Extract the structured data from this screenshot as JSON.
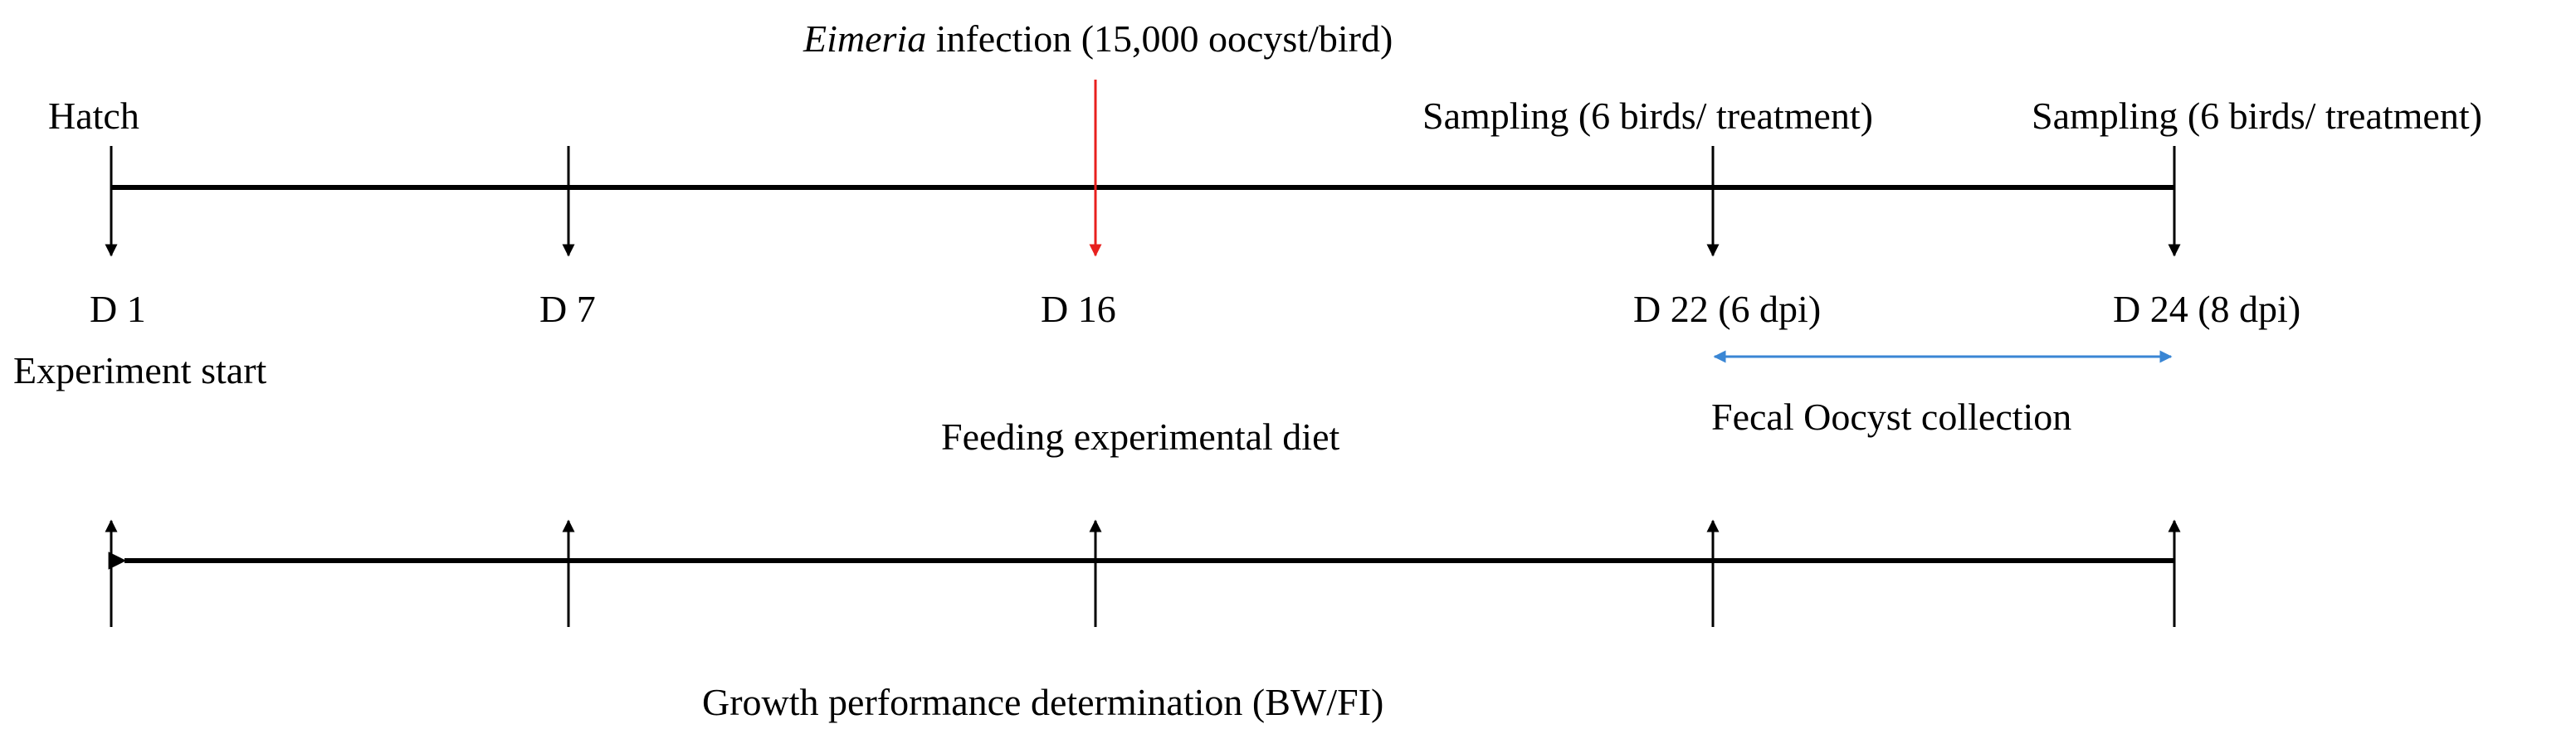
{
  "top_labels": {
    "hatch": "Hatch",
    "infection_italic": "Eimeria",
    "infection_rest": " infection (15,000 oocyst/bird)",
    "sampling_1": "Sampling (6 birds/ treatment)",
    "sampling_2": "Sampling (6 birds/ treatment)"
  },
  "days": {
    "d1": "D 1",
    "d7": "D 7",
    "d16": "D 16",
    "d22": "D 22 (6 dpi)",
    "d24": "D 24 (8 dpi)"
  },
  "middle_labels": {
    "experiment_start": "Experiment start",
    "feeding": "Feeding experimental diet",
    "fecal_collection": "Fecal Oocyst collection"
  },
  "bottom_label": "Growth performance determination (BW/FI)",
  "colors": {
    "line": "#000000",
    "infection_arrow": "#e8201e",
    "collection_arrow": "#3a86d4"
  }
}
